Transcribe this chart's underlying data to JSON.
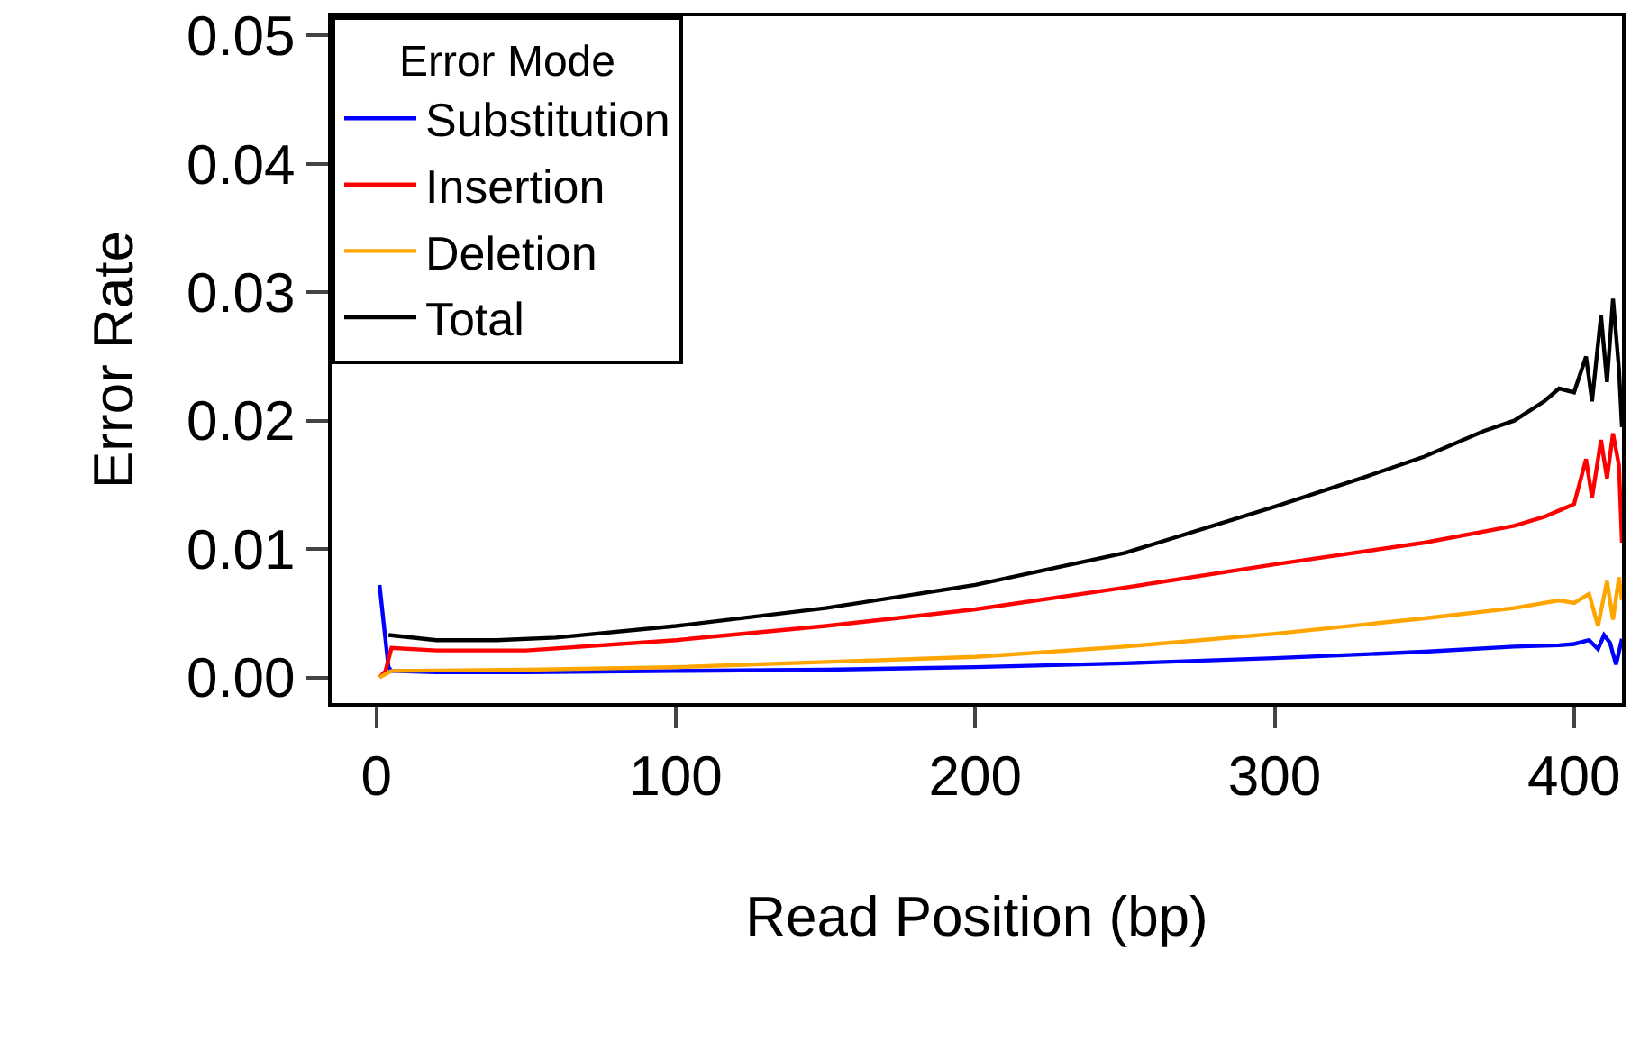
{
  "chart_data": {
    "type": "line",
    "xlabel": "Read Position (bp)",
    "ylabel": "Error Rate",
    "legend_title": "Error Mode",
    "legend": "top left",
    "grid": false,
    "marker": "none",
    "line_style": "solid",
    "xlim": [
      -15,
      416
    ],
    "xticks": [
      0,
      100,
      200,
      300,
      400
    ],
    "ylim": [
      -0.002,
      0.0515
    ],
    "yticks": [
      {
        "value": 0,
        "label": "0.00"
      },
      0.01,
      0.02,
      0.03,
      0.04,
      0.05
    ],
    "series": [
      {
        "name": "Substitution",
        "color": "#0000ff",
        "x": [
          1,
          4,
          5,
          20,
          50,
          100,
          150,
          200,
          250,
          300,
          350,
          380,
          395,
          400,
          405,
          408,
          410,
          412,
          414,
          416
        ],
        "values": [
          0.0072,
          0.0008,
          0.0005,
          0.0004,
          0.0004,
          0.0005,
          0.0006,
          0.0008,
          0.0011,
          0.0015,
          0.002,
          0.0024,
          0.0025,
          0.0026,
          0.0029,
          0.0022,
          0.0033,
          0.0027,
          0.001,
          0.003
        ]
      },
      {
        "name": "Insertion",
        "color": "#ff0000",
        "x": [
          1,
          3,
          5,
          20,
          50,
          100,
          150,
          200,
          250,
          300,
          350,
          380,
          390,
          395,
          400,
          404,
          406,
          409,
          411,
          413,
          415,
          416
        ],
        "values": [
          0.0,
          0.0005,
          0.0023,
          0.0021,
          0.0021,
          0.0029,
          0.004,
          0.0053,
          0.007,
          0.0088,
          0.0105,
          0.0118,
          0.0125,
          0.013,
          0.0135,
          0.017,
          0.014,
          0.0185,
          0.0155,
          0.019,
          0.0165,
          0.0105
        ]
      },
      {
        "name": "Deletion",
        "color": "#ffa500",
        "x": [
          1,
          5,
          50,
          100,
          150,
          200,
          250,
          300,
          350,
          380,
          395,
          400,
          405,
          408,
          411,
          413,
          415,
          416
        ],
        "values": [
          0.0,
          0.0005,
          0.0006,
          0.0008,
          0.0012,
          0.0016,
          0.0024,
          0.0034,
          0.0046,
          0.0054,
          0.006,
          0.0058,
          0.0065,
          0.004,
          0.0075,
          0.0045,
          0.0078,
          0.006
        ]
      },
      {
        "name": "Total",
        "color": "#000000",
        "x": [
          4,
          20,
          40,
          60,
          100,
          150,
          200,
          250,
          300,
          330,
          350,
          370,
          380,
          390,
          395,
          400,
          404,
          406,
          409,
          411,
          413,
          415,
          416
        ],
        "values": [
          0.0033,
          0.0029,
          0.0029,
          0.0031,
          0.004,
          0.0054,
          0.0072,
          0.0097,
          0.0133,
          0.0156,
          0.0172,
          0.0192,
          0.02,
          0.0215,
          0.0225,
          0.0222,
          0.025,
          0.0215,
          0.0282,
          0.023,
          0.0295,
          0.024,
          0.0195
        ]
      }
    ]
  }
}
